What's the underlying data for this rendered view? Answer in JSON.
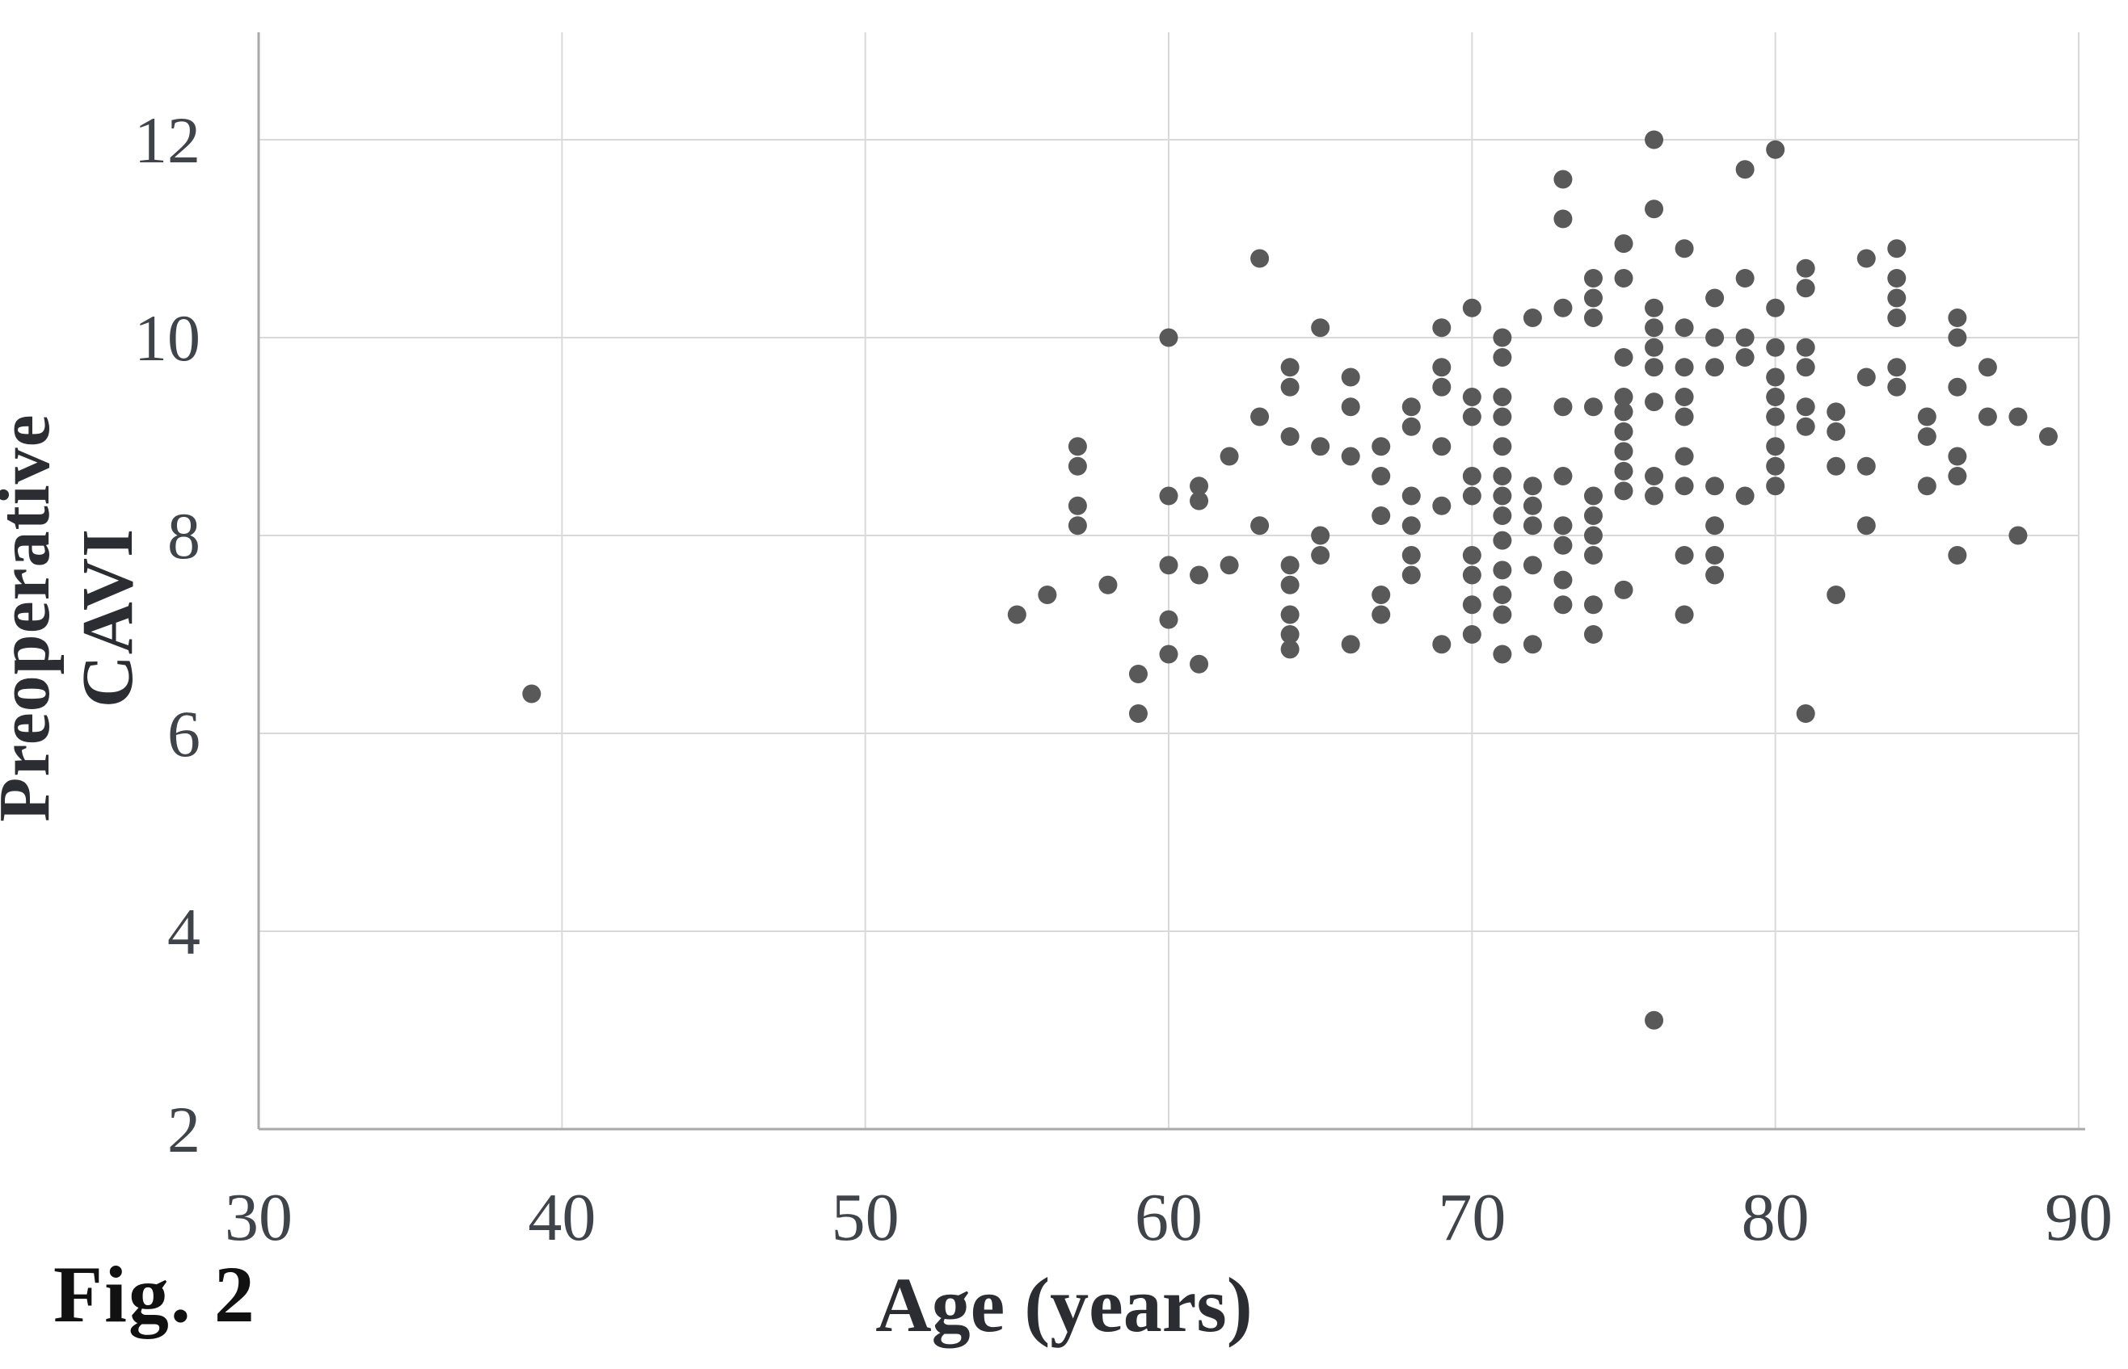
{
  "figure": {
    "fig_label": "Fig. 2",
    "x_axis_title": "Age (years)",
    "y_axis_title": "Preoperative CAVI"
  },
  "colors": {
    "point": "#595959",
    "gridline": "#d9d9d9",
    "axis_line": "#a9a9a9",
    "tick_label": "#3f434a",
    "title_text": "#2b2d33"
  },
  "chart_data": {
    "type": "scatter",
    "title": "",
    "xlabel": "Age (years)",
    "ylabel": "Preoperative CAVI",
    "xlim": [
      30,
      90
    ],
    "ylim": [
      2,
      12
    ],
    "x_ticks": [
      30,
      40,
      50,
      60,
      70,
      80,
      90
    ],
    "y_ticks": [
      2,
      4,
      6,
      8,
      10,
      12
    ],
    "grid": true,
    "legend": "none",
    "points": [
      [
        39,
        6.4
      ],
      [
        55,
        7.2
      ],
      [
        56,
        7.4
      ],
      [
        57,
        8.9
      ],
      [
        57,
        8.7
      ],
      [
        57,
        8.3
      ],
      [
        57,
        8.1
      ],
      [
        58,
        7.5
      ],
      [
        59,
        6.6
      ],
      [
        59,
        6.2
      ],
      [
        60,
        10.0
      ],
      [
        60,
        8.4
      ],
      [
        60,
        7.7
      ],
      [
        60,
        7.15
      ],
      [
        60,
        6.8
      ],
      [
        61,
        8.5
      ],
      [
        61,
        8.35
      ],
      [
        61,
        7.6
      ],
      [
        61,
        6.7
      ],
      [
        62,
        8.8
      ],
      [
        62,
        7.7
      ],
      [
        63,
        10.8
      ],
      [
        63,
        9.2
      ],
      [
        63,
        8.1
      ],
      [
        64,
        9.7
      ],
      [
        64,
        9.5
      ],
      [
        64,
        9.0
      ],
      [
        64,
        7.7
      ],
      [
        64,
        7.5
      ],
      [
        64,
        7.2
      ],
      [
        64,
        7.0
      ],
      [
        64,
        6.85
      ],
      [
        65,
        10.1
      ],
      [
        65,
        8.9
      ],
      [
        65,
        8.0
      ],
      [
        65,
        7.8
      ],
      [
        66,
        9.6
      ],
      [
        66,
        9.3
      ],
      [
        66,
        8.8
      ],
      [
        66,
        6.9
      ],
      [
        67,
        8.9
      ],
      [
        67,
        8.6
      ],
      [
        67,
        8.2
      ],
      [
        67,
        7.4
      ],
      [
        67,
        7.2
      ],
      [
        68,
        9.3
      ],
      [
        68,
        9.1
      ],
      [
        68,
        8.4
      ],
      [
        68,
        8.1
      ],
      [
        68,
        7.8
      ],
      [
        68,
        7.6
      ],
      [
        69,
        10.1
      ],
      [
        69,
        9.7
      ],
      [
        69,
        9.5
      ],
      [
        69,
        8.9
      ],
      [
        69,
        8.3
      ],
      [
        69,
        6.9
      ],
      [
        70,
        10.3
      ],
      [
        70,
        9.4
      ],
      [
        70,
        9.2
      ],
      [
        70,
        8.6
      ],
      [
        70,
        8.4
      ],
      [
        70,
        7.8
      ],
      [
        70,
        7.6
      ],
      [
        70,
        7.3
      ],
      [
        70,
        7.0
      ],
      [
        71,
        10.0
      ],
      [
        71,
        9.8
      ],
      [
        71,
        9.4
      ],
      [
        71,
        9.2
      ],
      [
        71,
        8.9
      ],
      [
        71,
        8.6
      ],
      [
        71,
        8.4
      ],
      [
        71,
        8.2
      ],
      [
        71,
        7.95
      ],
      [
        71,
        7.65
      ],
      [
        71,
        7.4
      ],
      [
        71,
        7.2
      ],
      [
        71,
        6.8
      ],
      [
        72,
        10.2
      ],
      [
        72,
        8.5
      ],
      [
        72,
        8.3
      ],
      [
        72,
        8.1
      ],
      [
        72,
        7.7
      ],
      [
        72,
        6.9
      ],
      [
        73,
        11.6
      ],
      [
        73,
        11.2
      ],
      [
        73,
        10.3
      ],
      [
        73,
        9.3
      ],
      [
        73,
        8.6
      ],
      [
        73,
        8.1
      ],
      [
        73,
        7.9
      ],
      [
        73,
        7.55
      ],
      [
        73,
        7.3
      ],
      [
        74,
        10.6
      ],
      [
        74,
        10.4
      ],
      [
        74,
        10.2
      ],
      [
        74,
        9.3
      ],
      [
        74,
        8.4
      ],
      [
        74,
        8.2
      ],
      [
        74,
        8.0
      ],
      [
        74,
        7.8
      ],
      [
        74,
        7.3
      ],
      [
        74,
        7.0
      ],
      [
        75,
        10.95
      ],
      [
        75,
        10.6
      ],
      [
        75,
        9.8
      ],
      [
        75,
        9.4
      ],
      [
        75,
        9.25
      ],
      [
        75,
        9.05
      ],
      [
        75,
        8.85
      ],
      [
        75,
        8.65
      ],
      [
        75,
        8.45
      ],
      [
        75,
        7.45
      ],
      [
        76,
        12.0
      ],
      [
        76,
        11.3
      ],
      [
        76,
        10.3
      ],
      [
        76,
        10.1
      ],
      [
        76,
        9.9
      ],
      [
        76,
        9.7
      ],
      [
        76,
        9.35
      ],
      [
        76,
        8.6
      ],
      [
        76,
        8.4
      ],
      [
        76,
        3.1
      ],
      [
        77,
        10.9
      ],
      [
        77,
        10.1
      ],
      [
        77,
        9.7
      ],
      [
        77,
        9.4
      ],
      [
        77,
        9.2
      ],
      [
        77,
        8.8
      ],
      [
        77,
        8.5
      ],
      [
        77,
        7.8
      ],
      [
        77,
        7.2
      ],
      [
        78,
        10.4
      ],
      [
        78,
        10.0
      ],
      [
        78,
        9.7
      ],
      [
        78,
        8.5
      ],
      [
        78,
        8.1
      ],
      [
        78,
        7.8
      ],
      [
        78,
        7.6
      ],
      [
        79,
        11.7
      ],
      [
        79,
        10.6
      ],
      [
        79,
        10.0
      ],
      [
        79,
        9.8
      ],
      [
        79,
        8.4
      ],
      [
        80,
        11.9
      ],
      [
        80,
        10.3
      ],
      [
        80,
        9.9
      ],
      [
        80,
        9.6
      ],
      [
        80,
        9.4
      ],
      [
        80,
        9.2
      ],
      [
        80,
        8.9
      ],
      [
        80,
        8.7
      ],
      [
        80,
        8.5
      ],
      [
        81,
        10.7
      ],
      [
        81,
        10.5
      ],
      [
        81,
        9.9
      ],
      [
        81,
        9.7
      ],
      [
        81,
        9.3
      ],
      [
        81,
        9.1
      ],
      [
        81,
        6.2
      ],
      [
        82,
        9.25
      ],
      [
        82,
        9.05
      ],
      [
        82,
        8.7
      ],
      [
        82,
        7.4
      ],
      [
        83,
        10.8
      ],
      [
        83,
        9.6
      ],
      [
        83,
        8.7
      ],
      [
        83,
        8.1
      ],
      [
        84,
        10.9
      ],
      [
        84,
        10.6
      ],
      [
        84,
        10.4
      ],
      [
        84,
        10.2
      ],
      [
        84,
        9.7
      ],
      [
        84,
        9.5
      ],
      [
        85,
        9.2
      ],
      [
        85,
        9.0
      ],
      [
        85,
        8.5
      ],
      [
        86,
        10.2
      ],
      [
        86,
        10.0
      ],
      [
        86,
        9.5
      ],
      [
        86,
        8.8
      ],
      [
        86,
        8.6
      ],
      [
        86,
        7.8
      ],
      [
        87,
        9.7
      ],
      [
        87,
        9.2
      ],
      [
        88,
        9.2
      ],
      [
        88,
        8.0
      ],
      [
        89,
        9.0
      ]
    ]
  }
}
